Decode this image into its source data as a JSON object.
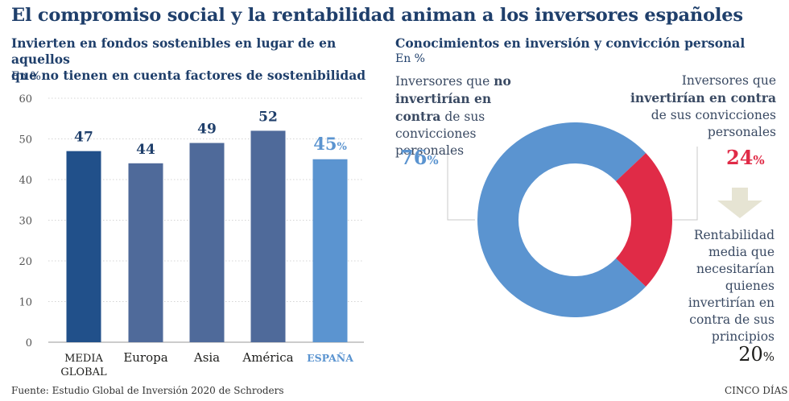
{
  "title": "El compromiso social y la rentabilidad animan a los inversores españoles",
  "left_chart": {
    "subtitle_line1": "Invierten en fondos sostenibles en lugar de en aquellos",
    "subtitle_line2": "que no tienen en cuenta factores de sostenibilidad",
    "unit": "En %"
  },
  "right_chart": {
    "subtitle": "Conocimientos en inversión y convicción personal",
    "unit": "En %",
    "left_label": {
      "pre": "Inversores que ",
      "bold": "no invertirían en contra",
      "post": " de sus convicciones personales"
    },
    "right_label": {
      "pre": "Inversores que ",
      "bold": "invertirían en contra",
      "post": " de sus convicciones personales"
    },
    "bottom_label": "Rentabilidad media que necesitarían quienes invertirían en contra de sus principios",
    "value_76": "76",
    "value_24": "24",
    "value_20": "20",
    "pct_sign": "%"
  },
  "chart_data": [
    {
      "type": "bar",
      "title": "Invierten en fondos sostenibles en lugar de en aquellos que no tienen en cuenta factores de sostenibilidad",
      "ylabel": "En %",
      "ylim": [
        0,
        60
      ],
      "yticks": [
        "0",
        "10",
        "20",
        "30",
        "40",
        "50",
        "60"
      ],
      "categories": [
        "MEDIA GLOBAL",
        "Europa",
        "Asia",
        "América",
        "ESPAÑA"
      ],
      "values": [
        47,
        44,
        49,
        52,
        45
      ],
      "value_labels": [
        "47",
        "44",
        "49",
        "52",
        "45"
      ]
    },
    {
      "type": "pie",
      "title": "Conocimientos en inversión y convicción personal",
      "labels": [
        "Inversores que no invertirían en contra de sus convicciones personales",
        "Inversores que invertirían en contra de sus convicciones personales"
      ],
      "values": [
        76,
        24
      ],
      "extra_value": {
        "label": "Rentabilidad media que necesitarían quienes invertirían en contra de sus principios",
        "value": 20
      }
    }
  ],
  "colors": {
    "global": "#21508a",
    "region": "#4f6a9a",
    "spain": "#5b94d0",
    "donut_main": "#5b94d0",
    "donut_red": "#e02b47",
    "arrow": "#e6e4d3",
    "title": "#1f3f6b"
  },
  "footer": {
    "source": "Fuente: Estudio Global de Inversión 2020 de Schroders",
    "brand": "CINCO DÍAS"
  }
}
